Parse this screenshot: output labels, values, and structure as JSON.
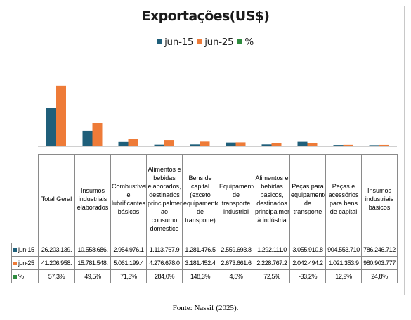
{
  "chart_data": {
    "type": "bar",
    "title": "Exportações(US$)",
    "legend_position": "top",
    "categories": [
      "Total Geral",
      "Insumos industriais elaborados",
      "Combustíveis e lubrificantes básicos",
      "Alimentos e bebidas elaborados, destinados principalmente ao consumo doméstico",
      "Bens de capital (exceto equipamentos de transporte)",
      "Equipamentos de transporte industrial",
      "Alimentos e bebidas básicos, destinados principalmente à indústria",
      "Peças para equipamentos de transporte",
      "Peças e acessórios para bens de capital",
      "Insumos industriais básicos"
    ],
    "series": [
      {
        "name": "jun-15",
        "color": "#1f5f7a",
        "values": [
          26203139,
          10558686,
          2954976.1,
          1113767.9,
          1281476.5,
          2559693.8,
          1292111.0,
          3055910.8,
          904553.71,
          786246.712
        ],
        "labels": [
          "26.203.139.",
          "10.558.686.",
          "2.954.976.1",
          "1.113.767.9",
          "1.281.476.5",
          "2.559.693.8",
          "1.292.111.0",
          "3.055.910.8",
          "904.553.710",
          "786.246.712"
        ]
      },
      {
        "name": "jun-25",
        "color": "#ee7b38",
        "values": [
          41206958,
          15781548,
          5061199.4,
          4276678.0,
          3181452.4,
          2673661.6,
          2228767.2,
          2042494.2,
          1021353.9,
          980903.777
        ],
        "labels": [
          "41.206.958.",
          "15.781.548.",
          "5.061.199.4",
          "4.276.678.0",
          "3.181.452.4",
          "2.673.661.6",
          "2.228.767.2",
          "2.042.494.2",
          "1.021.353.9",
          "980.903.777"
        ]
      },
      {
        "name": "%",
        "color": "#2e8b3e",
        "values": [
          57.3,
          49.5,
          71.3,
          284.0,
          148.3,
          4.5,
          72.5,
          -33.2,
          12.9,
          24.8
        ],
        "labels": [
          "57,3%",
          "49,5%",
          "71,3%",
          "284,0%",
          "148,3%",
          "4,5%",
          "72,5%",
          "-33,2%",
          "12,9%",
          "24,8%"
        ]
      }
    ],
    "ylim": [
      0,
      44000000
    ],
    "grid": false,
    "show_data_table": true
  },
  "source": "Fonte: Nassif (2025)."
}
